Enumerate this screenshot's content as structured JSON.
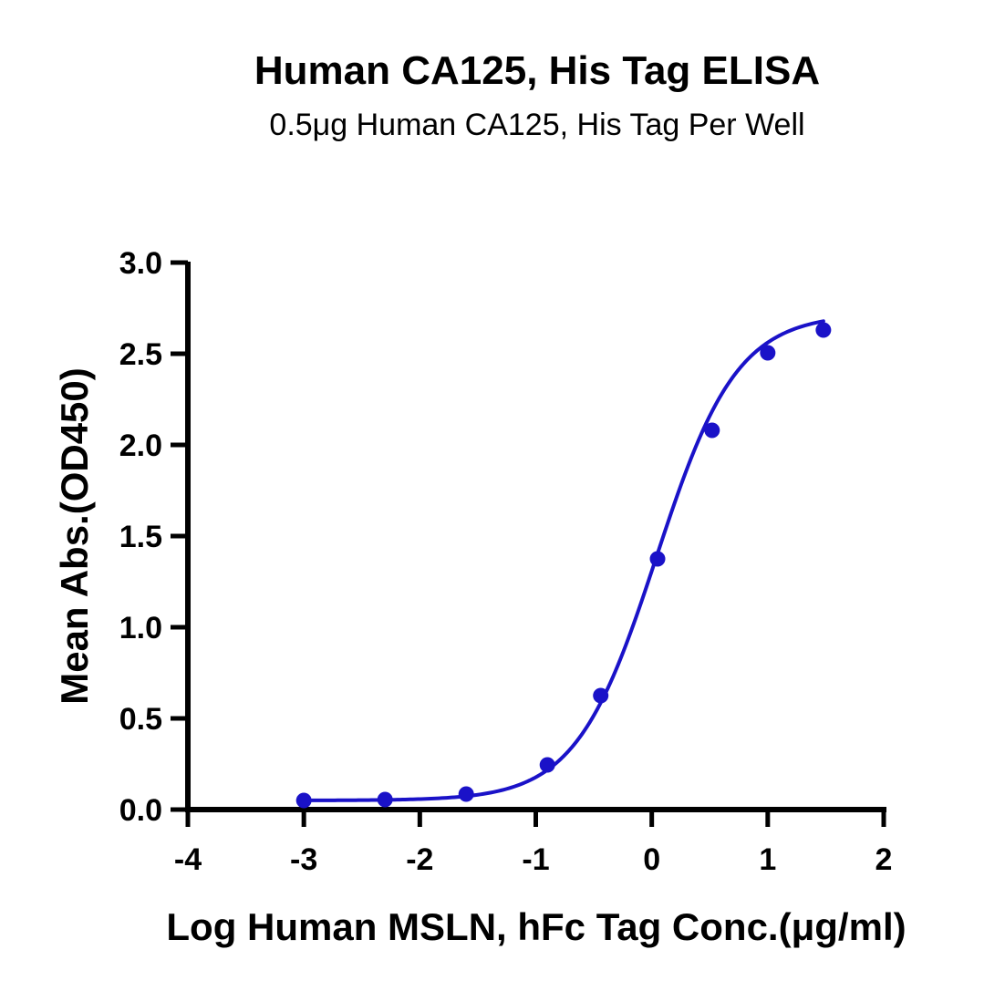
{
  "chart_data": {
    "type": "line",
    "title": "Human CA125, His Tag ELISA",
    "subtitle": "0.5μg Human CA125, His Tag Per Well",
    "xlabel": "Log Human MSLN, hFc Tag Conc.(μg/ml)",
    "ylabel": "Mean Abs.(OD450)",
    "xlim": [
      -4,
      2
    ],
    "ylim": [
      0,
      3.0
    ],
    "x_ticks": [
      "-4",
      "-3",
      "-2",
      "-1",
      "0",
      "1",
      "2"
    ],
    "y_ticks": [
      "0.0",
      "0.5",
      "1.0",
      "1.5",
      "2.0",
      "2.5",
      "3.0"
    ],
    "grid": false,
    "colors": {
      "series": "#1a12c8",
      "axis": "#000000"
    },
    "series": [
      {
        "x": [
          -3.0,
          -2.3,
          -1.6,
          -0.9,
          -0.44,
          0.05,
          0.52,
          1.0,
          1.48
        ],
        "y": [
          0.05,
          0.055,
          0.085,
          0.245,
          0.625,
          1.375,
          2.08,
          2.505,
          2.63
        ]
      }
    ],
    "curve": {
      "bottom": 0.05,
      "top": 2.72,
      "log_ec50": 0.04,
      "hill_slope": 1.25
    }
  }
}
